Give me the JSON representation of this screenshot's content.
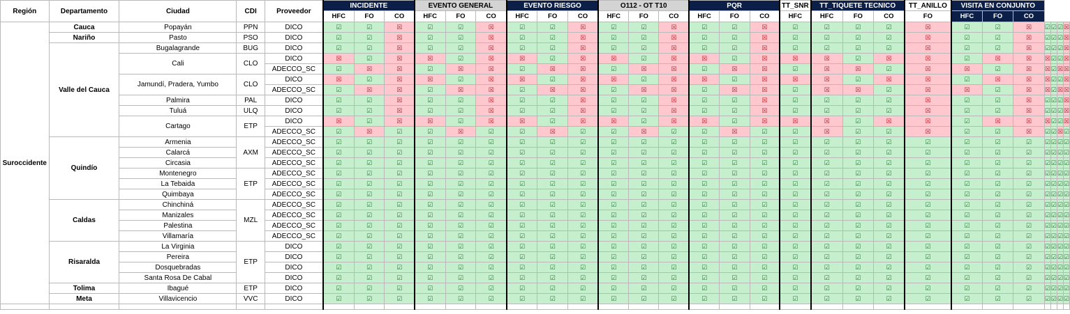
{
  "headers": {
    "region": "Región",
    "departamento": "Departamento",
    "ciudad": "Ciudad",
    "cdi": "CDI",
    "proveedor": "Proveedor"
  },
  "groups": [
    {
      "label": "INCIDENTE",
      "style": "navy",
      "subs": [
        "HFC",
        "FO",
        "CO"
      ]
    },
    {
      "label": "EVENTO GENERAL",
      "style": "gray",
      "subs": [
        "HFC",
        "FO",
        "CO"
      ]
    },
    {
      "label": "EVENTO RIESGO",
      "style": "navy",
      "subs": [
        "HFC",
        "FO",
        "CO"
      ]
    },
    {
      "label": "O112 - OT T10",
      "style": "gray",
      "subs": [
        "HFC",
        "FO",
        "CO"
      ]
    },
    {
      "label": "PQR",
      "style": "navy",
      "subs": [
        "HFC",
        "FO",
        "CO"
      ]
    },
    {
      "label": "TT_SNR",
      "style": "white",
      "subs": [
        "HFC"
      ]
    },
    {
      "label": "TT_TIQUETE TECNICO",
      "style": "navy",
      "subs": [
        "HFC",
        "FO",
        "CO"
      ]
    },
    {
      "label": "TT_ANILLO",
      "style": "white",
      "subs": [
        "FO"
      ]
    },
    {
      "label": "VISITA EN CONJUNTO",
      "style": "navy",
      "subs": [
        "HFC",
        "FO",
        "CO"
      ]
    }
  ],
  "symbols": {
    "ok": "☑",
    "no": "☒"
  },
  "colors": {
    "navy": "#0b1f49",
    "ok_bg": "#c6efce",
    "no_bg": "#ffc7ce",
    "gray": "#d4d4d4"
  },
  "region": {
    "label": "Suroccidente",
    "span": 27
  },
  "rows": [
    {
      "dep": "Cauca",
      "depSpan": 1,
      "city": "Popayán",
      "citySpan": 1,
      "cdi": "PPN",
      "cdiSpan": 1,
      "prov": "DICO",
      "v": "110110110110110111101101110"
    },
    {
      "dep": "Nariño",
      "depSpan": 1,
      "city": "Pasto",
      "citySpan": 1,
      "cdi": "PSO",
      "cdiSpan": 1,
      "prov": "DICO",
      "v": "110110110110110111101101110"
    },
    {
      "dep": "Valle del Cauca",
      "depSpan": 9,
      "city": "Bugalagrande",
      "citySpan": 1,
      "cdi": "BUG",
      "cdiSpan": 1,
      "prov": "DICO",
      "v": "110110110110110111101101110"
    },
    {
      "city": "Cali",
      "citySpan": 2,
      "cdi": "CLO",
      "cdiSpan": 2,
      "prov": "DICO",
      "v": "010010010010010001001000110"
    },
    {
      "prov": "ADECCO_SC",
      "v": "100100100100100100100100100"
    },
    {
      "city": "Jamundí, Pradera, Yumbo",
      "citySpan": 2,
      "cdi": "CLO",
      "cdiSpan": 2,
      "prov": "DICO",
      "v": "010010010010010001001000110"
    },
    {
      "prov": "ADECCO_SC",
      "v": "100100100100100100100100100"
    },
    {
      "city": "Palmira",
      "citySpan": 1,
      "cdi": "PAL",
      "cdiSpan": 1,
      "prov": "DICO",
      "v": "110110110110110111101101110"
    },
    {
      "city": "Tuluá",
      "citySpan": 1,
      "cdi": "ULQ",
      "cdiSpan": 1,
      "prov": "DICO",
      "v": "110110110110110111101101110"
    },
    {
      "city": "Cartago",
      "citySpan": 2,
      "cdi": "ETP",
      "cdiSpan": 2,
      "prov": "DICO",
      "v": "010010010010010001001000110"
    },
    {
      "prov": "ADECCO_SC",
      "v": "101101101101101101101101101"
    },
    {
      "dep": "Quindío",
      "depSpan": 6,
      "city": "Armenia",
      "citySpan": 1,
      "cdi": "AXM",
      "cdiSpan": 3,
      "prov": "ADECCO_SC",
      "v": "111111111111111111111111111"
    },
    {
      "city": "Calarcá",
      "citySpan": 1,
      "prov": "ADECCO_SC",
      "v": "111111111111111111111111111"
    },
    {
      "city": "Circasia",
      "citySpan": 1,
      "prov": "ADECCO_SC",
      "v": "111111111111111111111111111"
    },
    {
      "city": "Montenegro",
      "citySpan": 1,
      "cdi": "ETP",
      "cdiSpan": 3,
      "prov": "ADECCO_SC",
      "v": "111111111111111111111111111"
    },
    {
      "city": "La Tebaida",
      "citySpan": 1,
      "prov": "ADECCO_SC",
      "v": "111111111111111111111111111"
    },
    {
      "city": "Quimbaya",
      "citySpan": 1,
      "prov": "ADECCO_SC",
      "v": "111111111111111111111111111"
    },
    {
      "dep": "Caldas",
      "depSpan": 4,
      "city": "Chinchiná",
      "citySpan": 1,
      "cdi": "MZL",
      "cdiSpan": 4,
      "prov": "ADECCO_SC",
      "v": "111111111111111111111111111"
    },
    {
      "city": "Manizales",
      "citySpan": 1,
      "prov": "ADECCO_SC",
      "v": "111111111111111111111111111"
    },
    {
      "city": "Palestina",
      "citySpan": 1,
      "prov": "ADECCO_SC",
      "v": "111111111111111111111111111"
    },
    {
      "city": "Villamaría",
      "citySpan": 1,
      "prov": "ADECCO_SC",
      "v": "111111111111111111111111111"
    },
    {
      "dep": "Risaralda",
      "depSpan": 4,
      "city": "La Virginia",
      "citySpan": 1,
      "cdi": "ETP",
      "cdiSpan": 4,
      "prov": "DICO",
      "v": "111111111111111111111111111"
    },
    {
      "city": "Pereira",
      "citySpan": 1,
      "prov": "DICO",
      "v": "111111111111111111111111111"
    },
    {
      "city": "Dosquebradas",
      "citySpan": 1,
      "prov": "DICO",
      "v": "111111111111111111111111111"
    },
    {
      "city": "Santa Rosa De Cabal",
      "citySpan": 1,
      "prov": "DICO",
      "v": "111111111111111111111111111"
    },
    {
      "dep": "Tolima",
      "depSpan": 1,
      "city": "Ibagué",
      "citySpan": 1,
      "cdi": "ETP",
      "cdiSpan": 1,
      "prov": "DICO",
      "v": "111111111111111111111111111"
    },
    {
      "dep": "Meta",
      "depSpan": 1,
      "city": "Villavicencio",
      "citySpan": 1,
      "cdi": "VVC",
      "cdiSpan": 1,
      "prov": "DICO",
      "v": "111111111111111111111111111"
    }
  ]
}
